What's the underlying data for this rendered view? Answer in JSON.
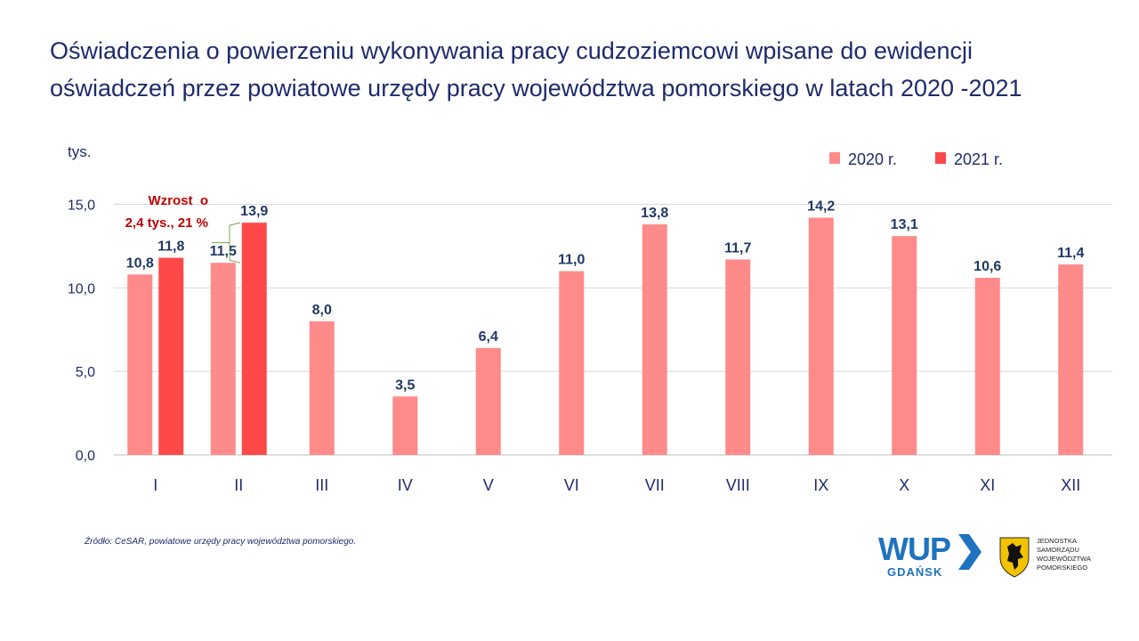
{
  "title": {
    "line1": "Oświadczenia o powierzeniu wykonywania pracy cudzoziemcowi wpisane do ewidencji",
    "line2": "oświadczeń przez powiatowe urzędy pracy województwa pomorskiego w latach 2020 -2021"
  },
  "chart_data": {
    "type": "bar",
    "unit_label": "tys.",
    "categories": [
      "I",
      "II",
      "III",
      "IV",
      "V",
      "VI",
      "VII",
      "VIII",
      "IX",
      "X",
      "XI",
      "XII"
    ],
    "series": [
      {
        "name": "2020 r.",
        "color": "#ff8a8a",
        "values": [
          10.8,
          11.5,
          8.0,
          3.5,
          6.4,
          11.0,
          13.8,
          11.7,
          14.2,
          13.1,
          10.6,
          11.4
        ],
        "labels": [
          "10,8",
          "11,5",
          "8,0",
          "3,5",
          "6,4",
          "11,0",
          "13,8",
          "11,7",
          "14,2",
          "13,1",
          "10,6",
          "11,4"
        ]
      },
      {
        "name": "2021 r.",
        "color": "#ff4848",
        "values": [
          11.8,
          13.9,
          null,
          null,
          null,
          null,
          null,
          null,
          null,
          null,
          null,
          null
        ],
        "labels": [
          "11,8",
          "13,9",
          null,
          null,
          null,
          null,
          null,
          null,
          null,
          null,
          null,
          null
        ]
      }
    ],
    "ylim": [
      0,
      15
    ],
    "yticks": [
      0,
      5,
      10,
      15
    ],
    "ytick_labels": [
      "0,0",
      "5,0",
      "10,0",
      "15,0"
    ],
    "grid": true,
    "legend_position": "top-right",
    "annotation": {
      "line1": "Wzrost  o",
      "line2": "2,4 tys., 21 %",
      "color": "#c00000"
    },
    "label_color": "#1f3864",
    "axis_color": "#1f2a6b"
  },
  "source": "Źródło: CeSAR, powiatowe urzędy pracy województwa pomorskiego.",
  "logo_wup": {
    "main": "WUP",
    "sub": "GDAŃSK",
    "color": "#1e73be"
  },
  "logo_region": {
    "lines": [
      "JEDNOSTKA",
      "SAMORZĄDU",
      "WOJEWÓDZTWA",
      "POMORSKIEGO"
    ]
  }
}
